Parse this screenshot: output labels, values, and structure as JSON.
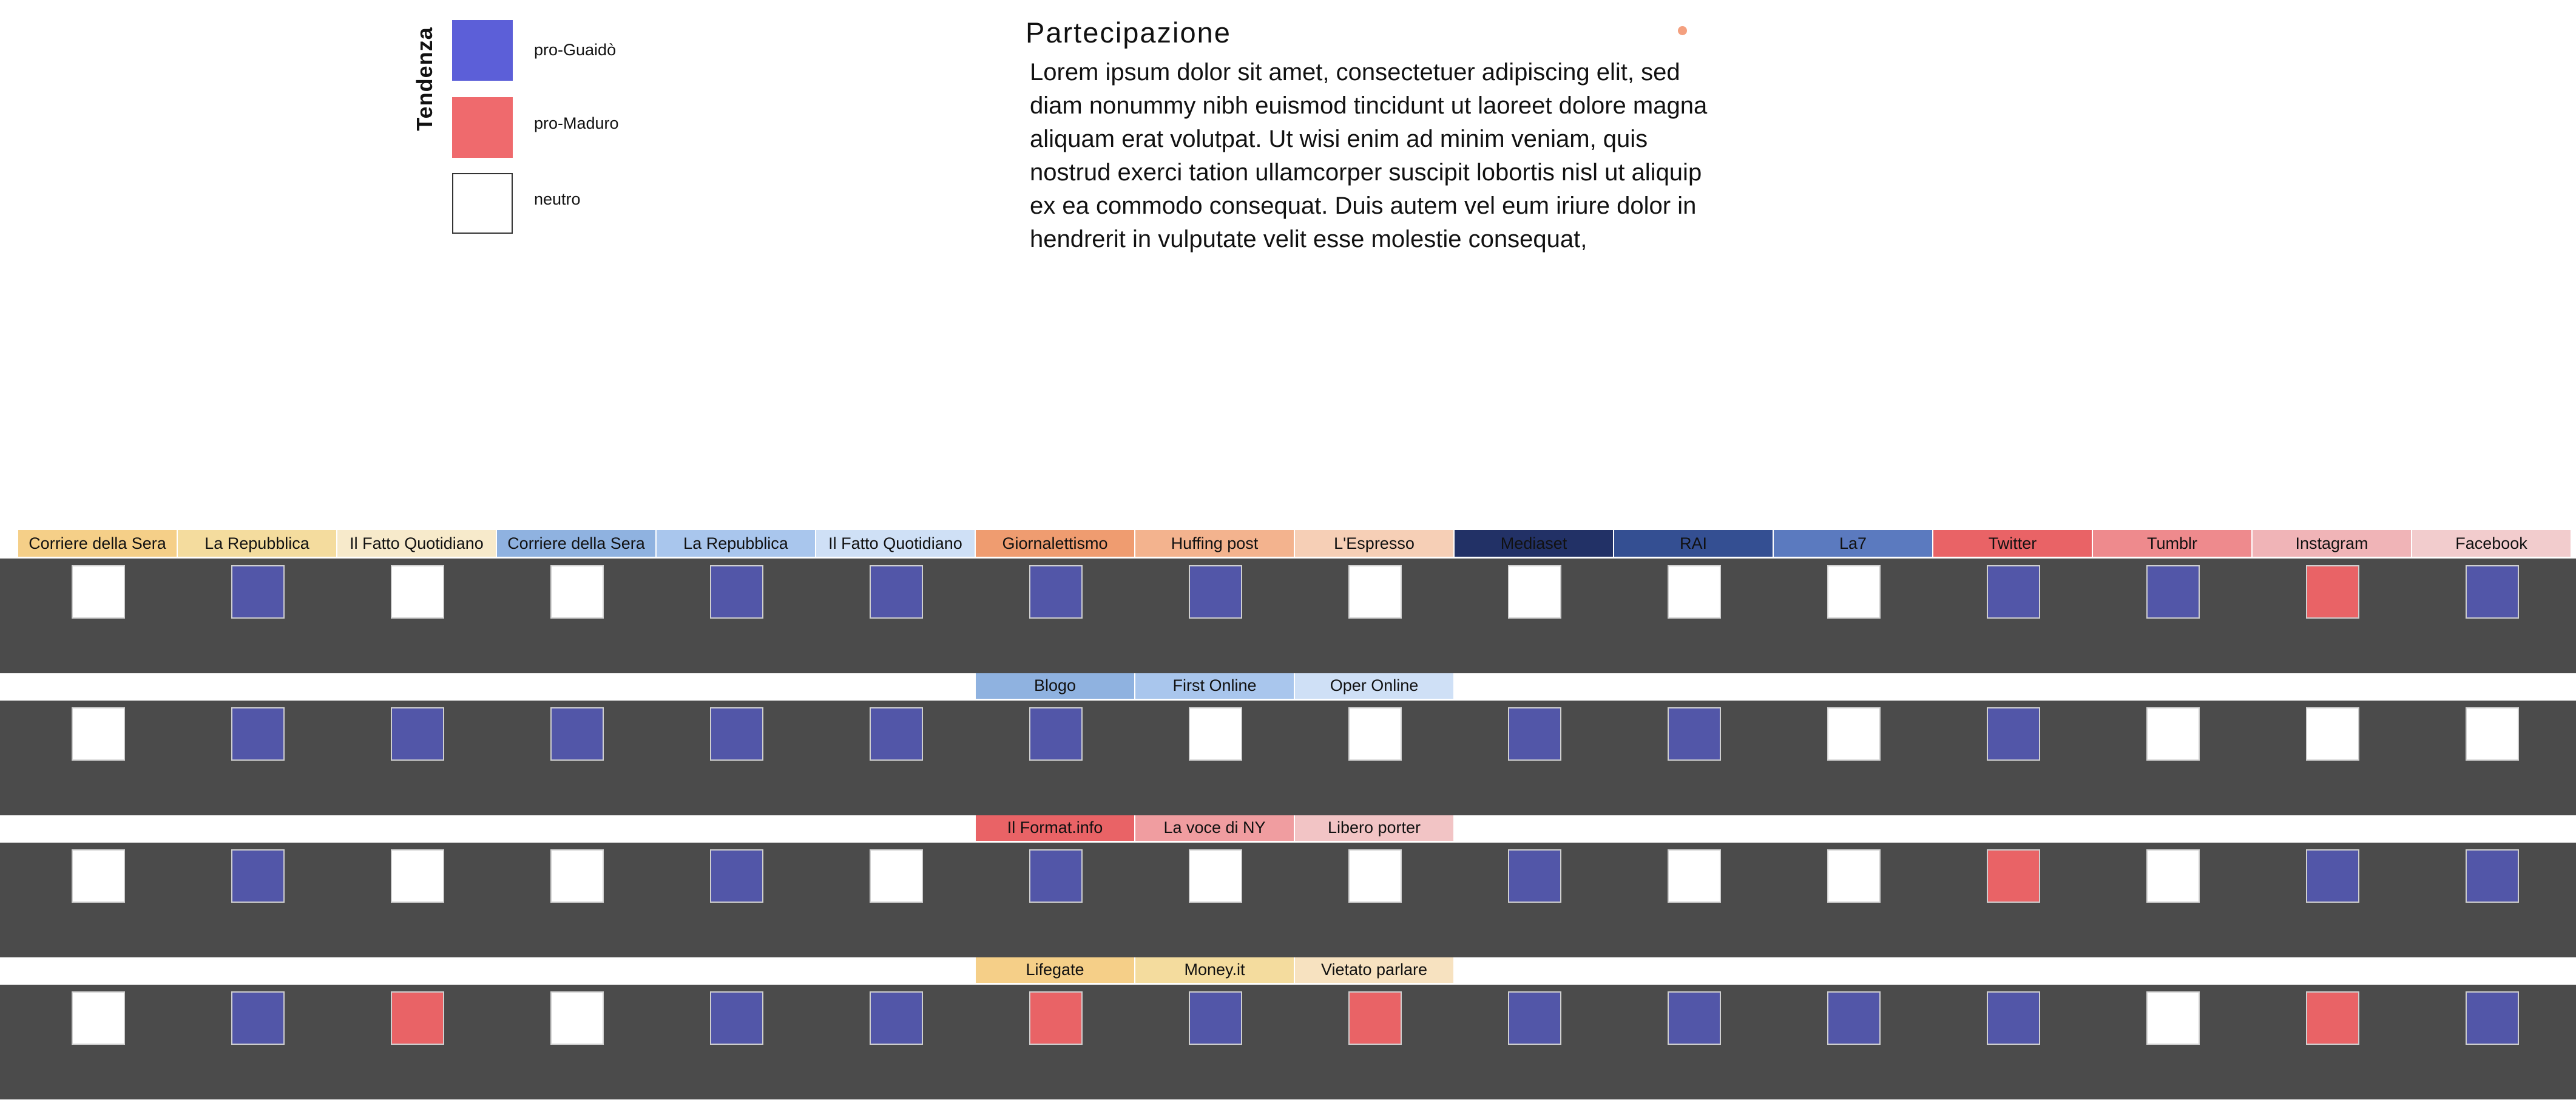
{
  "legend": {
    "axis_title": "Tendenza",
    "items": [
      {
        "label": "pro-Guaidò",
        "color": "#5c5fd8"
      },
      {
        "label": "pro-Maduro",
        "color": "#ef6a6d"
      },
      {
        "label": "neutro",
        "color": "#ffffff"
      }
    ]
  },
  "title": "Partecipazione",
  "body_text": "Lorem ipsum dolor sit amet, consectetuer adipiscing elit, sed diam nonummy nibh euismod tincidunt ut laoreet dolore magna aliquam erat volutpat. Ut wisi enim ad minim veniam, quis nostrud exerci tation ullamcorper suscipit lobortis nisl ut aliquip ex ea commodo consequat. Duis autem vel eum iriure dolor in hendrerit in vulputate velit esse molestie consequat,",
  "colors": {
    "guaido": "#5256a8",
    "maduro": "#e96366",
    "neutro": "#ffffff",
    "strip": "#4b4b4b"
  },
  "header_rows": [
    [
      {
        "label": "Corriere della Sera",
        "color": "#f5cf88"
      },
      {
        "label": "La Repubblica",
        "color": "#f4dc9e"
      },
      {
        "label": "Il Fatto Quotidiano",
        "color": "#f7eacb"
      },
      {
        "label": "Corriere della Sera",
        "color": "#8fb2e0"
      },
      {
        "label": "La Repubblica",
        "color": "#a9c6ed"
      },
      {
        "label": "Il Fatto Quotidiano",
        "color": "#cfe0f6"
      },
      {
        "label": "Giornalettismo",
        "color": "#ef9c70"
      },
      {
        "label": "Huffing post",
        "color": "#f3b38e"
      },
      {
        "label": "L'Espresso",
        "color": "#f6cfb6"
      },
      {
        "label": "Mediaset",
        "color": "#223166"
      },
      {
        "label": "RAI",
        "color": "#344f92"
      },
      {
        "label": "La7",
        "color": "#5b7abf"
      },
      {
        "label": "Twitter",
        "color": "#e96366"
      },
      {
        "label": "Tumblr",
        "color": "#ee8a8d"
      },
      {
        "label": "Instagram",
        "color": "#f0b4b7"
      },
      {
        "label": "Facebook",
        "color": "#f2cccd"
      }
    ],
    [
      {
        "col": 6,
        "label": "Blogo",
        "color": "#8fb2e0"
      },
      {
        "col": 7,
        "label": "First Online",
        "color": "#a9c6ed"
      },
      {
        "col": 8,
        "label": "Oper Online",
        "color": "#cfe0f6"
      }
    ],
    [
      {
        "col": 6,
        "label": "Il Format.info",
        "color": "#e96366"
      },
      {
        "col": 7,
        "label": "La voce di NY",
        "color": "#f09da0"
      },
      {
        "col": 8,
        "label": "Libero porter",
        "color": "#f2c4c5"
      }
    ],
    [
      {
        "col": 6,
        "label": "Lifegate",
        "color": "#f5cf88"
      },
      {
        "col": 7,
        "label": "Money.it",
        "color": "#f4dc9e"
      },
      {
        "col": 8,
        "label": "Vietato parlare",
        "color": "#f7e2c0"
      }
    ]
  ],
  "grid": [
    [
      "neutro",
      "guaido",
      "neutro",
      "neutro",
      "guaido",
      "guaido",
      "guaido",
      "guaido",
      "neutro",
      "neutro",
      "neutro",
      "neutro",
      "guaido",
      "guaido",
      "maduro",
      "guaido"
    ],
    [
      "neutro",
      "guaido",
      "guaido",
      "guaido",
      "guaido",
      "guaido",
      "guaido",
      "neutro",
      "neutro",
      "guaido",
      "guaido",
      "neutro",
      "guaido",
      "neutro",
      "neutro",
      "neutro"
    ],
    [
      "neutro",
      "guaido",
      "neutro",
      "neutro",
      "guaido",
      "neutro",
      "guaido",
      "neutro",
      "neutro",
      "guaido",
      "neutro",
      "neutro",
      "maduro",
      "neutro",
      "guaido",
      "guaido"
    ],
    [
      "neutro",
      "guaido",
      "maduro",
      "neutro",
      "guaido",
      "guaido",
      "maduro",
      "guaido",
      "maduro",
      "guaido",
      "guaido",
      "guaido",
      "guaido",
      "neutro",
      "maduro",
      "guaido"
    ]
  ]
}
